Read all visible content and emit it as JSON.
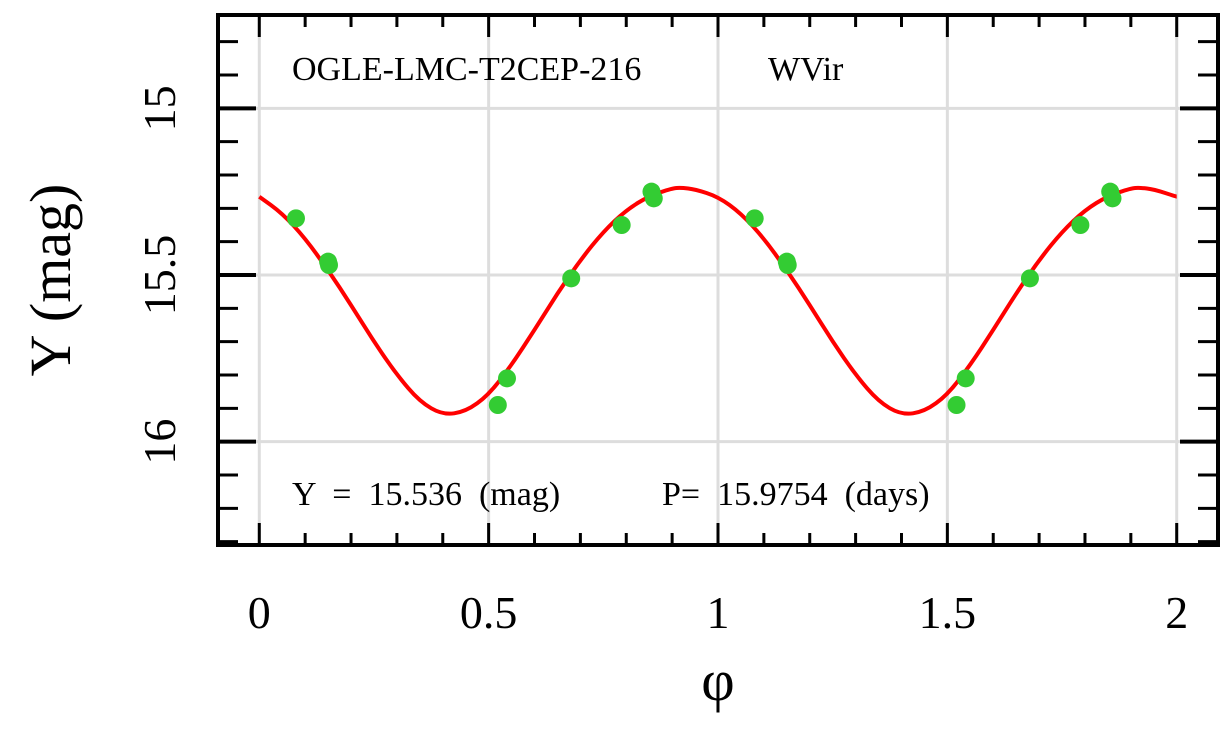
{
  "chart_data": {
    "type": "scatter",
    "star_id": "OGLE-LMC-T2CEP-216",
    "star_class": "WVir",
    "annotation": {
      "mean_label": "Y  =  15.536  (mag)",
      "period_label": "P=  15.9754  (days)"
    },
    "xlabel": "φ",
    "ylabel": "Y (mag)",
    "xlim": [
      -0.09,
      2.09
    ],
    "ylim": [
      16.31,
      14.72
    ],
    "y_inverted": true,
    "grid": true,
    "x_ticks": [
      {
        "value": 0,
        "label": "0"
      },
      {
        "value": 0.5,
        "label": "0.5"
      },
      {
        "value": 1,
        "label": "1"
      },
      {
        "value": 1.5,
        "label": "1.5"
      },
      {
        "value": 2,
        "label": "2"
      }
    ],
    "y_ticks": [
      {
        "value": 15,
        "label": "15"
      },
      {
        "value": 15.5,
        "label": "15.5"
      },
      {
        "value": 16,
        "label": "16"
      }
    ],
    "x_minor_step": 0.1,
    "y_minor_step": 0.1,
    "series": [
      {
        "kind": "points",
        "color": "#33cc33",
        "points": [
          {
            "x": 0.08,
            "y": 15.33
          },
          {
            "x": 0.15,
            "y": 15.46
          },
          {
            "x": 0.152,
            "y": 15.47
          },
          {
            "x": 0.52,
            "y": 15.89
          },
          {
            "x": 0.54,
            "y": 15.81
          },
          {
            "x": 0.68,
            "y": 15.51
          },
          {
            "x": 0.79,
            "y": 15.35
          },
          {
            "x": 0.855,
            "y": 15.25
          },
          {
            "x": 0.86,
            "y": 15.27
          },
          {
            "x": 1.08,
            "y": 15.33
          },
          {
            "x": 1.15,
            "y": 15.46
          },
          {
            "x": 1.152,
            "y": 15.47
          },
          {
            "x": 1.52,
            "y": 15.89
          },
          {
            "x": 1.54,
            "y": 15.81
          },
          {
            "x": 1.68,
            "y": 15.51
          },
          {
            "x": 1.79,
            "y": 15.35
          },
          {
            "x": 1.855,
            "y": 15.25
          },
          {
            "x": 1.86,
            "y": 15.27
          }
        ]
      },
      {
        "kind": "fit",
        "color": "#ff0000",
        "x": [
          0,
          0.05,
          0.1,
          0.15,
          0.2,
          0.25,
          0.3,
          0.35,
          0.4,
          0.45,
          0.5,
          0.55,
          0.6,
          0.65,
          0.7,
          0.75,
          0.8,
          0.85,
          0.9,
          0.92,
          0.95,
          1.0,
          1.05,
          1.1,
          1.15,
          1.2,
          1.25,
          1.3,
          1.35,
          1.4,
          1.45,
          1.5,
          1.55,
          1.6,
          1.65,
          1.7,
          1.75,
          1.8,
          1.85,
          1.9,
          1.92,
          1.95,
          2.0
        ],
        "y": [
          15.265,
          15.315,
          15.39,
          15.485,
          15.59,
          15.7,
          15.8,
          15.88,
          15.92,
          15.91,
          15.86,
          15.77,
          15.665,
          15.555,
          15.455,
          15.37,
          15.305,
          15.263,
          15.24,
          15.238,
          15.243,
          15.265,
          15.315,
          15.39,
          15.485,
          15.59,
          15.7,
          15.8,
          15.88,
          15.92,
          15.91,
          15.86,
          15.77,
          15.665,
          15.555,
          15.455,
          15.37,
          15.305,
          15.263,
          15.24,
          15.238,
          15.243,
          15.265
        ]
      }
    ]
  }
}
